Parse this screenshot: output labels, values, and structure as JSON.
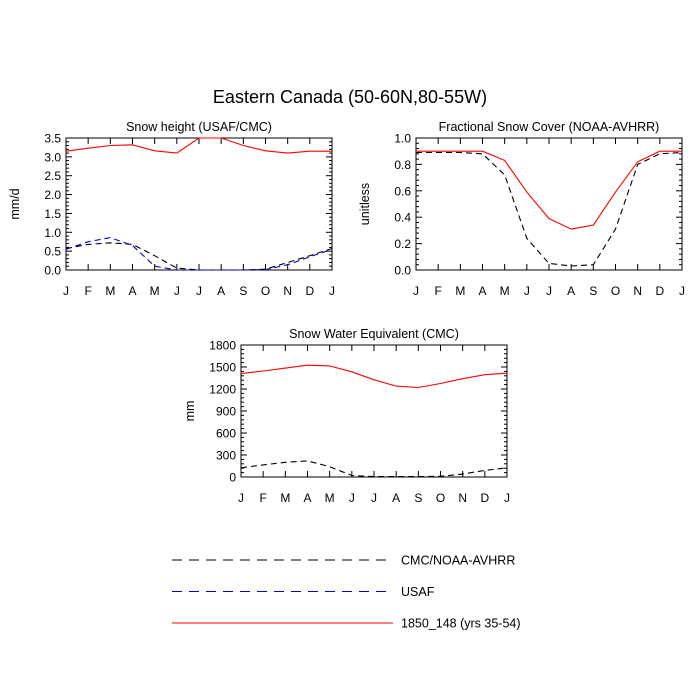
{
  "figure_title": "Eastern Canada (50-60N,80-55W)",
  "months": [
    "J",
    "F",
    "M",
    "A",
    "M",
    "J",
    "J",
    "A",
    "S",
    "O",
    "N",
    "D",
    "J"
  ],
  "legend": [
    {
      "label": "CMC/NOAA-AVHRR",
      "color": "#000000",
      "style": "dashed"
    },
    {
      "label": "USAF",
      "color": "#0000cc",
      "style": "dashed"
    },
    {
      "label": "1850_148 (yrs 35-54)",
      "color": "#ff0000",
      "style": "solid"
    }
  ],
  "chart_data": [
    {
      "type": "line",
      "title": "Snow height (USAF/CMC)",
      "xlabel": "",
      "ylabel": "mm/d",
      "ylim": [
        0,
        3.5
      ],
      "yticks": [
        "0.0",
        "0.5",
        "1.0",
        "1.5",
        "2.0",
        "2.5",
        "3.0",
        "3.5"
      ],
      "categories": [
        "J",
        "F",
        "M",
        "A",
        "M",
        "J",
        "J",
        "A",
        "S",
        "O",
        "N",
        "D",
        "J"
      ],
      "series": [
        {
          "name": "CMC/NOAA-AVHRR",
          "color": "#000000",
          "dash": true,
          "values": [
            0.57,
            0.68,
            0.72,
            0.68,
            0.38,
            0.05,
            0.0,
            0.0,
            0.0,
            0.02,
            0.2,
            0.38,
            0.57
          ]
        },
        {
          "name": "USAF",
          "color": "#0000cc",
          "dash": true,
          "values": [
            0.55,
            0.75,
            0.86,
            0.65,
            0.1,
            0.0,
            0.0,
            0.0,
            0.0,
            0.01,
            0.14,
            0.35,
            0.55
          ]
        },
        {
          "name": "1850_148 (yrs 35-54)",
          "color": "#ff0000",
          "dash": false,
          "values": [
            3.15,
            3.23,
            3.3,
            3.32,
            3.16,
            3.1,
            3.5,
            3.5,
            3.3,
            3.16,
            3.1,
            3.15,
            3.15
          ]
        }
      ]
    },
    {
      "type": "line",
      "title": "Fractional Snow Cover (NOAA-AVHRR)",
      "xlabel": "",
      "ylabel": "unitless",
      "ylim": [
        0,
        1.0
      ],
      "yticks": [
        "0.0",
        "0.2",
        "0.4",
        "0.6",
        "0.8",
        "1.0"
      ],
      "categories": [
        "J",
        "F",
        "M",
        "A",
        "M",
        "J",
        "J",
        "A",
        "S",
        "O",
        "N",
        "D",
        "J"
      ],
      "series": [
        {
          "name": "CMC/NOAA-AVHRR",
          "color": "#000000",
          "dash": true,
          "values": [
            0.89,
            0.89,
            0.89,
            0.88,
            0.72,
            0.24,
            0.05,
            0.03,
            0.04,
            0.31,
            0.8,
            0.88,
            0.89
          ]
        },
        {
          "name": "1850_148 (yrs 35-54)",
          "color": "#ff0000",
          "dash": false,
          "values": [
            0.9,
            0.9,
            0.9,
            0.9,
            0.83,
            0.59,
            0.39,
            0.31,
            0.34,
            0.59,
            0.82,
            0.9,
            0.9
          ]
        }
      ]
    },
    {
      "type": "line",
      "title": "Snow Water Equivalent (CMC)",
      "xlabel": "",
      "ylabel": "mm",
      "ylim": [
        0,
        1800
      ],
      "yticks": [
        "0",
        "300",
        "600",
        "900",
        "1200",
        "1500",
        "1800"
      ],
      "categories": [
        "J",
        "F",
        "M",
        "A",
        "M",
        "J",
        "J",
        "A",
        "S",
        "O",
        "N",
        "D",
        "J"
      ],
      "series": [
        {
          "name": "CMC/NOAA-AVHRR",
          "color": "#000000",
          "dash": true,
          "values": [
            125,
            165,
            200,
            220,
            140,
            20,
            5,
            5,
            5,
            10,
            40,
            90,
            125
          ]
        },
        {
          "name": "1850_148 (yrs 35-54)",
          "color": "#ff0000",
          "dash": false,
          "values": [
            1410,
            1445,
            1485,
            1525,
            1515,
            1435,
            1325,
            1240,
            1220,
            1275,
            1340,
            1395,
            1415
          ]
        }
      ]
    }
  ]
}
